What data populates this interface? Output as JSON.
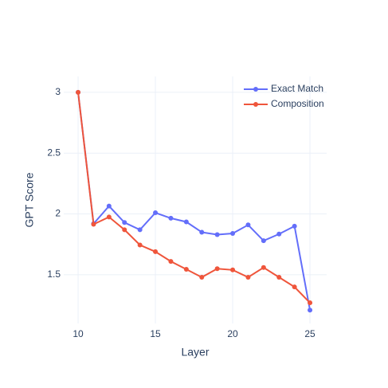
{
  "chart_data": {
    "type": "line",
    "xlabel": "Layer",
    "ylabel": "GPT Score",
    "x": [
      10,
      11,
      12,
      13,
      14,
      15,
      16,
      17,
      18,
      19,
      20,
      21,
      22,
      23,
      24,
      25
    ],
    "series": [
      {
        "name": "Exact Match",
        "color": "#636efa",
        "values": [
          3.0,
          1.92,
          2.065,
          1.93,
          1.87,
          2.01,
          1.965,
          1.935,
          1.85,
          1.83,
          1.84,
          1.91,
          1.78,
          1.835,
          1.9,
          1.21
        ]
      },
      {
        "name": "Composition",
        "color": "#ef553b",
        "values": [
          3.0,
          1.915,
          1.975,
          1.87,
          1.745,
          1.69,
          1.61,
          1.545,
          1.48,
          1.55,
          1.54,
          1.48,
          1.56,
          1.48,
          1.4,
          1.27
        ]
      }
    ],
    "xlim": [
      9.07,
      26.08
    ],
    "ylim": [
      1.1,
      3.13
    ],
    "xticks": [
      10,
      15,
      20,
      25
    ],
    "yticks": [
      1.5,
      2,
      2.5,
      3
    ],
    "grid": true,
    "legend": "top-right"
  }
}
